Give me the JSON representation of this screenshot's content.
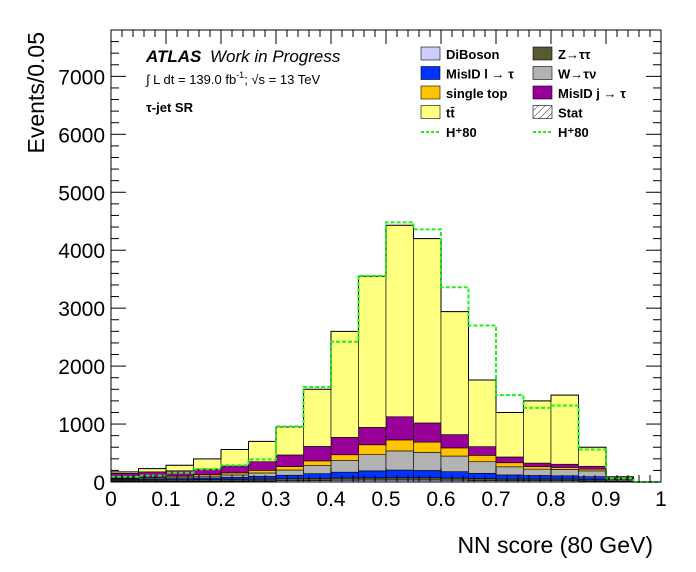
{
  "chart_data": {
    "type": "bar",
    "stacked": true,
    "bin_width": 0.05,
    "x_bin_edges": [
      0,
      0.05,
      0.1,
      0.15,
      0.2,
      0.25,
      0.3,
      0.35,
      0.4,
      0.45,
      0.5,
      0.55,
      0.6,
      0.65,
      0.7,
      0.75,
      0.8,
      0.85,
      0.9,
      0.95,
      1.0
    ],
    "xlim": [
      0,
      1
    ],
    "ylim": [
      0,
      7800
    ],
    "xlabel": "NN score (80 GeV)",
    "ylabel": "Events/0.05",
    "x_ticks": [
      "0",
      "0.1",
      "0.2",
      "0.3",
      "0.4",
      "0.5",
      "0.6",
      "0.7",
      "0.8",
      "0.9",
      "1"
    ],
    "y_ticks": [
      "0",
      "1000",
      "2000",
      "3000",
      "4000",
      "5000",
      "6000",
      "7000"
    ],
    "annotations": {
      "atlas": "ATLAS",
      "status": "Work in Progress",
      "lumi": "∫ L dt = 139.0 fb",
      "lumi_sup": "-1",
      "energy": ";   √s = 13 TeV",
      "region": "τ-jet SR"
    },
    "series": [
      {
        "name": "DiBoson",
        "color": "#ccccff",
        "values": [
          10,
          10,
          12,
          14,
          16,
          18,
          22,
          26,
          30,
          32,
          34,
          34,
          30,
          26,
          22,
          22,
          22,
          18,
          5,
          0
        ]
      },
      {
        "name": "Z→ττ",
        "color": "#5a5a32",
        "values": [
          20,
          22,
          25,
          28,
          30,
          32,
          35,
          38,
          40,
          40,
          42,
          40,
          38,
          34,
          30,
          30,
          30,
          26,
          6,
          0
        ]
      },
      {
        "name": "MisID l → τ",
        "color": "#0033ff",
        "values": [
          15,
          18,
          22,
          28,
          36,
          46,
          60,
          80,
          100,
          120,
          130,
          125,
          110,
          90,
          70,
          60,
          55,
          48,
          10,
          0
        ]
      },
      {
        "name": "W→τν",
        "color": "#b3b3b3",
        "values": [
          15,
          20,
          25,
          30,
          40,
          60,
          90,
          140,
          200,
          280,
          330,
          310,
          270,
          200,
          140,
          110,
          110,
          100,
          20,
          0
        ]
      },
      {
        "name": "single top",
        "color": "#ffc400",
        "values": [
          10,
          15,
          20,
          25,
          35,
          45,
          60,
          80,
          100,
          170,
          190,
          180,
          140,
          110,
          70,
          45,
          35,
          30,
          10,
          0
        ]
      },
      {
        "name": "MisID j → τ",
        "color": "#990099",
        "values": [
          80,
          90,
          90,
          100,
          120,
          150,
          200,
          250,
          300,
          300,
          400,
          330,
          230,
          150,
          100,
          60,
          55,
          50,
          20,
          0
        ]
      },
      {
        "name": "tt̄",
        "color": "#ffff80",
        "values": [
          25,
          55,
          95,
          175,
          283,
          349,
          483,
          986,
          1830,
          2608,
          3304,
          3181,
          2122,
          1150,
          768,
          1073,
          1193,
          328,
          19,
          0
        ]
      }
    ],
    "stat_label": "Stat",
    "overlays": [
      {
        "name": "H⁺80",
        "color": "#22ee22",
        "style": "dashed",
        "values": [
          90,
          110,
          160,
          220,
          290,
          390,
          960,
          1640,
          2420,
          3560,
          4480,
          4360,
          3360,
          2700,
          1500,
          1280,
          1320,
          560,
          60,
          0
        ]
      },
      {
        "name": "H⁺80",
        "color": "#22ee22",
        "style": "dashed",
        "values": [
          90,
          110,
          160,
          220,
          290,
          390,
          960,
          1640,
          2420,
          3560,
          4480,
          4360,
          3360,
          2700,
          1500,
          1280,
          1320,
          560,
          60,
          0
        ]
      }
    ],
    "legend_position": "top-right"
  }
}
